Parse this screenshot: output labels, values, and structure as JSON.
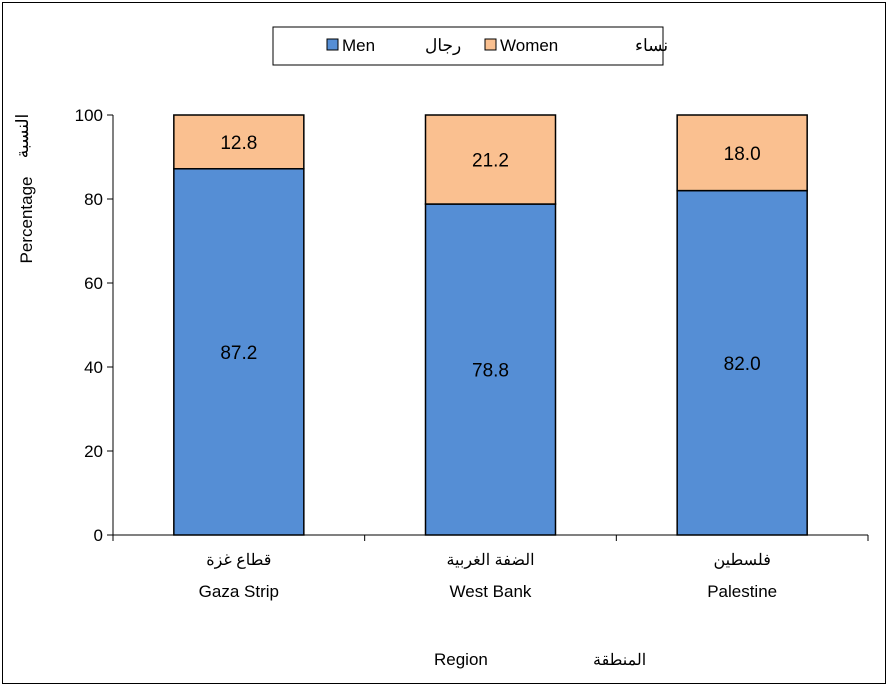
{
  "chart_data": {
    "type": "bar",
    "stacked": true,
    "categories": [
      {
        "ar": "قطاع غزة",
        "en": "Gaza Strip"
      },
      {
        "ar": "الضفة الغربية",
        "en": "West Bank"
      },
      {
        "ar": "فلسطين",
        "en": "Palestine"
      }
    ],
    "series": [
      {
        "name": "Men",
        "name_ar": "رجال",
        "color": "#558ED5",
        "values": [
          87.2,
          78.8,
          82.0
        ],
        "labels": [
          "87.2",
          "78.8",
          "82.0"
        ]
      },
      {
        "name": "Women",
        "name_ar": "نساء",
        "color": "#FAC090",
        "values": [
          12.8,
          21.2,
          18.0
        ],
        "labels": [
          "12.8",
          "21.2",
          "18.0"
        ]
      }
    ],
    "ylabel": "Percentage",
    "ylabel_ar": "النسبة",
    "xlabel": "Region",
    "xlabel_ar": "المنطقة",
    "ylim": [
      0,
      100
    ],
    "yticks": [
      0,
      20,
      40,
      60,
      80,
      100
    ],
    "grid": false,
    "legend_position": "top-center"
  }
}
